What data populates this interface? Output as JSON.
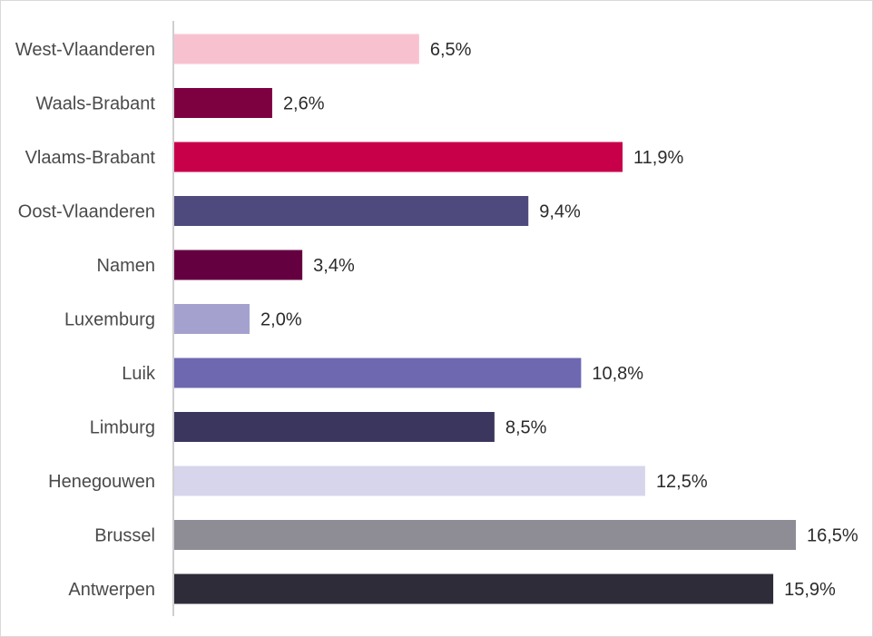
{
  "chart_data": {
    "type": "bar",
    "orientation": "horizontal",
    "categories": [
      "West-Vlaanderen",
      "Waals-Brabant",
      "Vlaams-Brabant",
      "Oost-Vlaanderen",
      "Namen",
      "Luxemburg",
      "Luik",
      "Limburg",
      "Henegouwen",
      "Brussel",
      "Antwerpen"
    ],
    "values": [
      6.5,
      2.6,
      11.9,
      9.4,
      3.4,
      2.0,
      10.8,
      8.5,
      12.5,
      16.5,
      15.9
    ],
    "value_labels": [
      "6,5%",
      "2,6%",
      "11,9%",
      "9,4%",
      "3,4%",
      "2,0%",
      "10,8%",
      "8,5%",
      "12,5%",
      "16,5%",
      "15,9%"
    ],
    "colors": [
      "#f8c1d0",
      "#7d0041",
      "#c8004a",
      "#4f4a7d",
      "#650040",
      "#a5a1cf",
      "#6d68b0",
      "#3b365e",
      "#d7d5ec",
      "#8e8c94",
      "#2f2c3a"
    ],
    "title": "",
    "xlabel": "",
    "ylabel": "",
    "xlim": [
      0,
      16.5
    ],
    "grid": false,
    "legend": "none"
  }
}
